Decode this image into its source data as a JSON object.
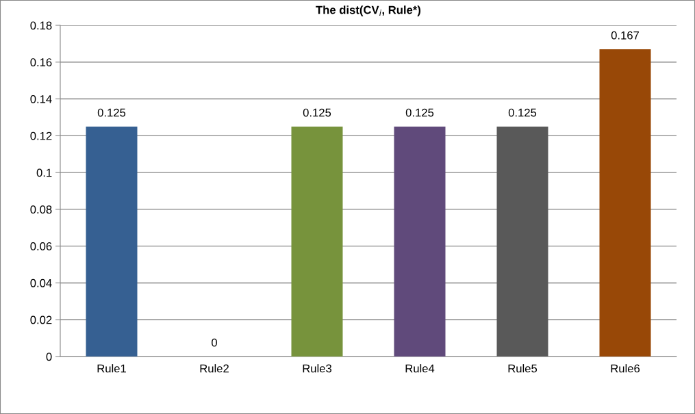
{
  "chart_data": {
    "type": "bar",
    "title": "The dist(CV$_{i}$, Rule*)",
    "categories": [
      "Rule1",
      "Rule2",
      "Rule3",
      "Rule4",
      "Rule5",
      "Rule6"
    ],
    "values": [
      0.125,
      0,
      0.125,
      0.125,
      0.125,
      0.167
    ],
    "colors": [
      "#366092",
      "#953735",
      "#77933c",
      "#604a7b",
      "#595959",
      "#984807"
    ],
    "ylim": [
      0,
      0.18
    ],
    "yticks": [
      0,
      {
        "value": 0.02,
        "label": "0.02"
      },
      {
        "value": 0.04,
        "label": "0.04"
      },
      {
        "value": 0.06,
        "label": "0.06"
      },
      {
        "value": 0.08,
        "label": "0.08"
      },
      {
        "value": 0.1,
        "label": "0.1"
      },
      {
        "value": 0.12,
        "label": "0.12"
      },
      {
        "value": 0.14,
        "label": "0.14"
      },
      {
        "value": 0.16,
        "label": "0.16"
      },
      {
        "value": 0.18,
        "label": "0.18"
      }
    ],
    "grid": "y",
    "data_labels": true
  }
}
